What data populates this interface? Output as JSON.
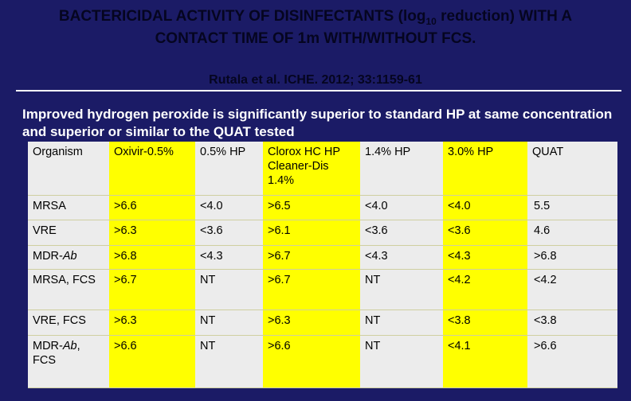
{
  "header": {
    "title_pre": "BACTERICIDAL ACTIVITY OF DISINFECTANTS (log",
    "title_sub": "10",
    "title_post": " reduction) WITH A CONTACT TIME OF 1m WITH/WITHOUT FCS.",
    "citation": "Rutala et al. ICHE. 2012; 33:1159-61"
  },
  "summary": "Improved hydrogen peroxide is significantly superior to standard HP at same concentration and superior or similar to the QUAT tested",
  "table": {
    "columns": [
      "Organism",
      "Oxivir-0.5%",
      "0.5% HP",
      "Clorox HC HP Cleaner-Dis 1.4%",
      "1.4% HP",
      "3.0% HP",
      "QUAT"
    ],
    "rows": [
      {
        "organism": [
          "MRSA"
        ],
        "cells": [
          ">6.6",
          "<4.0",
          ">6.5",
          "<4.0",
          "<4.0",
          "5.5"
        ]
      },
      {
        "organism": [
          "VRE"
        ],
        "cells": [
          ">6.3",
          "<3.6",
          ">6.1",
          "<3.6",
          "<3.6",
          "4.6"
        ]
      },
      {
        "organism": [
          "MDR-",
          "Ab"
        ],
        "cells": [
          ">6.8",
          "<4.3",
          ">6.7",
          "<4.3",
          "<4.3",
          ">6.8"
        ]
      },
      {
        "organism": [
          "MRSA, FCS"
        ],
        "cells": [
          ">6.7",
          "NT",
          ">6.7",
          "NT",
          "<4.2",
          "<4.2"
        ]
      },
      {
        "organism": [
          "VRE, FCS"
        ],
        "cells": [
          ">6.3",
          "NT",
          ">6.3",
          "NT",
          "<3.8",
          "<3.8"
        ]
      },
      {
        "organism": [
          "MDR-",
          "Ab",
          ", FCS"
        ],
        "cells": [
          ">6.6",
          "NT",
          ">6.6",
          "NT",
          "<4.1",
          ">6.6"
        ]
      }
    ]
  }
}
